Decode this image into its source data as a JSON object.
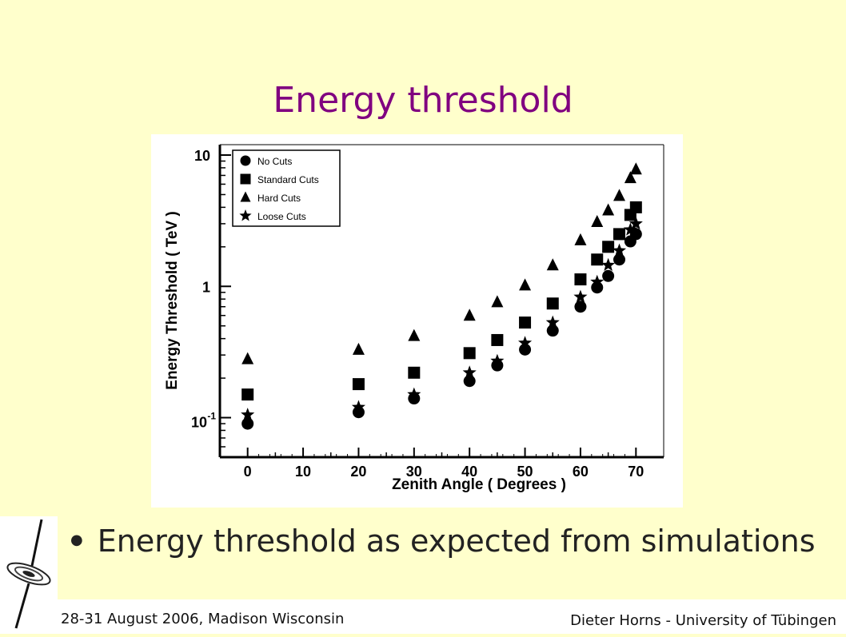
{
  "slide": {
    "title": "Energy threshold",
    "bullet": "Energy threshold as expected from simulations",
    "footer_left": "28-31 August 2006, Madison Wisconsin",
    "footer_right": "Dieter Horns -  University of Tübingen"
  },
  "colors": {
    "background": "#ffffcc",
    "title": "#800080",
    "marks": "#000000"
  },
  "chart_data": {
    "type": "scatter",
    "xlabel": "Zenith Angle ( Degrees )",
    "ylabel": "Energy Threshold ( TeV )",
    "xlim": [
      -5,
      75
    ],
    "ylim": [
      0.05,
      12
    ],
    "yscale": "log",
    "xticks": [
      "0",
      "10",
      "20",
      "30",
      "40",
      "50",
      "60",
      "70"
    ],
    "yticks": [
      "10",
      "1",
      "10-1"
    ],
    "legend_position": "top-left",
    "grid": false,
    "series": [
      {
        "name": "No Cuts",
        "marker": "circle",
        "x": [
          0,
          20,
          30,
          40,
          45,
          50,
          55,
          60,
          63,
          65,
          67,
          69,
          70
        ],
        "y": [
          0.09,
          0.11,
          0.14,
          0.19,
          0.25,
          0.33,
          0.46,
          0.7,
          0.98,
          1.2,
          1.6,
          2.2,
          2.5
        ]
      },
      {
        "name": "Standard Cuts",
        "marker": "square",
        "x": [
          0,
          20,
          30,
          40,
          45,
          50,
          55,
          60,
          63,
          65,
          67,
          69,
          70
        ],
        "y": [
          0.15,
          0.18,
          0.22,
          0.31,
          0.39,
          0.53,
          0.74,
          1.13,
          1.6,
          2.0,
          2.5,
          3.5,
          4.0
        ]
      },
      {
        "name": "Hard Cuts",
        "marker": "triangle",
        "x": [
          0,
          20,
          30,
          40,
          45,
          50,
          55,
          60,
          63,
          65,
          67,
          69,
          70
        ],
        "y": [
          0.28,
          0.33,
          0.42,
          0.6,
          0.76,
          1.02,
          1.45,
          2.25,
          3.1,
          3.8,
          4.9,
          6.7,
          7.8
        ]
      },
      {
        "name": "Loose Cuts",
        "marker": "star",
        "x": [
          0,
          20,
          30,
          40,
          45,
          50,
          55,
          60,
          63,
          65,
          67,
          69,
          70
        ],
        "y": [
          0.105,
          0.12,
          0.15,
          0.22,
          0.27,
          0.37,
          0.53,
          0.83,
          1.08,
          1.45,
          1.87,
          2.7,
          3.0
        ]
      }
    ]
  }
}
